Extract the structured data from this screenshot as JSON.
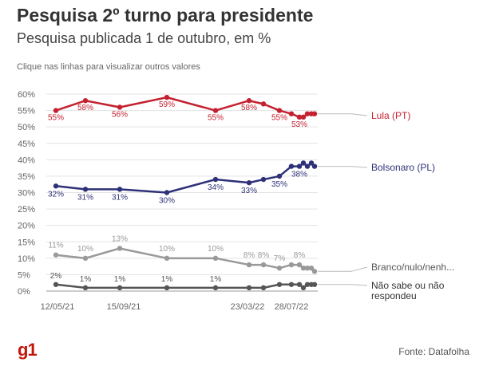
{
  "header": {
    "title": "Pesquisa 2º turno para presidente",
    "subtitle": "Pesquisa publicada 1 de outubro, em %",
    "hint": "Clique nas linhas para visualizar outros valores"
  },
  "footer": {
    "logo": "g1",
    "source": "Fonte: Datafolha"
  },
  "chart_data": {
    "type": "line",
    "ylim": [
      0,
      60
    ],
    "y_ticks": [
      0,
      5,
      10,
      15,
      20,
      25,
      30,
      35,
      40,
      45,
      50,
      55,
      60
    ],
    "y_tick_suffix": "%",
    "x_ticks": [
      "12/05/21",
      "15/09/21",
      "23/03/22",
      "28/07/22"
    ],
    "x_tick_index": [
      0,
      2,
      5,
      8
    ],
    "grid": true,
    "series": [
      {
        "name": "Lula (PT)",
        "color": "#c4202f",
        "values": [
          55,
          58,
          56,
          59,
          55,
          58,
          57,
          55,
          54,
          53,
          53,
          54,
          54,
          54
        ],
        "labels": {
          "0": "55%",
          "1": "58%",
          "2": "56%",
          "3": "59%",
          "4": "55%",
          "5": "58%",
          "7": "55%",
          "9": "53%"
        }
      },
      {
        "name": "Bolsonaro (PL)",
        "color": "#2e3178",
        "values": [
          32,
          31,
          31,
          30,
          34,
          33,
          34,
          35,
          38,
          38,
          39,
          38,
          39,
          38
        ],
        "labels": {
          "0": "32%",
          "1": "31%",
          "2": "31%",
          "3": "30%",
          "4": "34%",
          "5": "33%",
          "7": "35%",
          "9": "38%"
        }
      },
      {
        "name": "Branco/nulo/nenh...",
        "color": "#999999",
        "values": [
          11,
          10,
          13,
          10,
          10,
          8,
          8,
          7,
          8,
          8,
          7,
          7,
          7,
          6
        ],
        "labels": {
          "0": "11%",
          "1": "10%",
          "2": "13%",
          "3": "10%",
          "4": "10%",
          "5": "8%",
          "6": "8%",
          "7": "7%",
          "9": "8%"
        }
      },
      {
        "name": "Não sabe ou não respondeu",
        "color": "#555555",
        "values": [
          2,
          1,
          1,
          1,
          1,
          1,
          1,
          2,
          2,
          2,
          1,
          2,
          2,
          2
        ],
        "labels": {
          "0": "2%",
          "1": "1%",
          "2": "1%",
          "3": "1%",
          "4": "1%"
        }
      }
    ]
  }
}
